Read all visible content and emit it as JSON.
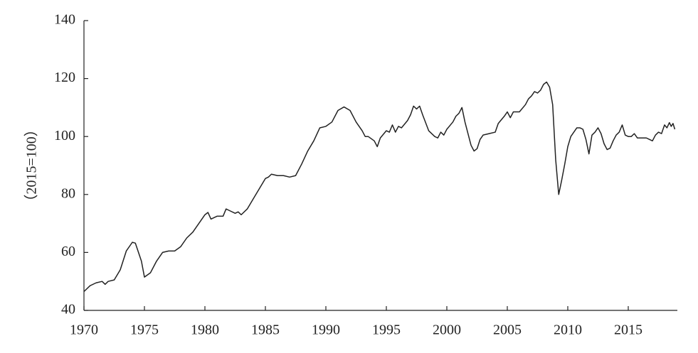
{
  "chart_data": {
    "type": "line",
    "y_label": "（2015=100）",
    "color": "#222222",
    "xlim": [
      1970,
      2019.06
    ],
    "xticks": [
      1970,
      1975,
      1980,
      1985,
      1990,
      1995,
      2000,
      2005,
      2010,
      2015
    ],
    "ylim": [
      40,
      140
    ],
    "yticks": [
      40,
      60,
      80,
      100,
      120,
      140
    ],
    "x": [
      1970.0,
      1970.5,
      1971.0,
      1971.5,
      1971.75,
      1972.0,
      1972.5,
      1973.0,
      1973.5,
      1974.0,
      1974.25,
      1974.75,
      1975.0,
      1975.5,
      1976.0,
      1976.5,
      1977.0,
      1977.5,
      1978.0,
      1978.5,
      1979.0,
      1979.5,
      1980.0,
      1980.25,
      1980.5,
      1981.0,
      1981.5,
      1981.75,
      1982.0,
      1982.5,
      1982.75,
      1983.0,
      1983.5,
      1984.0,
      1984.5,
      1985.0,
      1985.25,
      1985.5,
      1986.0,
      1986.5,
      1987.0,
      1987.5,
      1988.0,
      1988.5,
      1989.0,
      1989.5,
      1990.0,
      1990.5,
      1991.0,
      1991.5,
      1992.0,
      1992.5,
      1993.0,
      1993.25,
      1993.5,
      1994.0,
      1994.25,
      1994.5,
      1995.0,
      1995.25,
      1995.5,
      1995.75,
      1996.0,
      1996.25,
      1996.75,
      1997.0,
      1997.25,
      1997.5,
      1997.75,
      1998.0,
      1998.5,
      1999.0,
      1999.25,
      1999.5,
      1999.75,
      2000.0,
      2000.5,
      2000.75,
      2001.0,
      2001.25,
      2001.5,
      2002.0,
      2002.25,
      2002.5,
      2002.75,
      2003.0,
      2003.5,
      2004.0,
      2004.25,
      2004.75,
      2005.0,
      2005.25,
      2005.5,
      2006.0,
      2006.5,
      2006.75,
      2007.0,
      2007.25,
      2007.5,
      2007.75,
      2008.0,
      2008.25,
      2008.5,
      2008.75,
      2009.0,
      2009.25,
      2009.5,
      2009.75,
      2010.0,
      2010.25,
      2010.5,
      2010.75,
      2011.0,
      2011.25,
      2011.5,
      2011.75,
      2012.0,
      2012.25,
      2012.5,
      2012.75,
      2013.0,
      2013.25,
      2013.5,
      2013.75,
      2014.0,
      2014.25,
      2014.5,
      2014.75,
      2015.0,
      2015.25,
      2015.5,
      2015.75,
      2016.0,
      2016.5,
      2016.75,
      2017.0,
      2017.25,
      2017.5,
      2017.75,
      2018.0,
      2018.2,
      2018.4,
      2018.55,
      2018.7,
      2018.85
    ],
    "values": [
      46.5,
      48.5,
      49.5,
      50,
      49,
      50,
      50.5,
      54,
      60.5,
      63.5,
      63.2,
      57,
      51.5,
      53,
      57,
      60,
      60.5,
      60.5,
      62,
      65,
      67,
      70,
      73,
      73.8,
      71.5,
      72.5,
      72.5,
      75,
      74.5,
      73.5,
      74,
      73,
      75,
      78.5,
      82,
      85.5,
      86,
      87,
      86.5,
      86.5,
      86,
      86.5,
      90.5,
      95,
      98.5,
      103,
      103.5,
      105,
      109,
      110.2,
      109,
      105,
      102,
      100,
      100,
      98.5,
      96.5,
      99.5,
      102,
      101.5,
      104,
      101.5,
      103.5,
      103,
      105.5,
      107.5,
      110.5,
      109.5,
      110.5,
      107.5,
      102,
      100,
      99.5,
      101.5,
      100.5,
      102.5,
      105,
      107,
      108,
      110,
      105,
      97,
      95,
      95.8,
      99,
      100.5,
      101,
      101.5,
      104.5,
      107,
      108.5,
      106.5,
      108.5,
      108.5,
      111,
      113,
      114,
      115.5,
      115,
      116,
      118,
      118.8,
      117,
      111,
      92,
      80,
      85,
      90.5,
      96.5,
      100,
      101.5,
      103,
      103,
      102.5,
      99,
      94,
      100.5,
      101.5,
      103,
      101,
      97.5,
      95.5,
      96,
      98.5,
      100.5,
      101.5,
      104,
      100.5,
      100,
      100,
      101,
      99.5,
      99.5,
      99.5,
      99,
      98.5,
      100.5,
      101.5,
      101,
      104,
      103,
      104.8,
      103.5,
      104.5,
      102.5
    ]
  }
}
